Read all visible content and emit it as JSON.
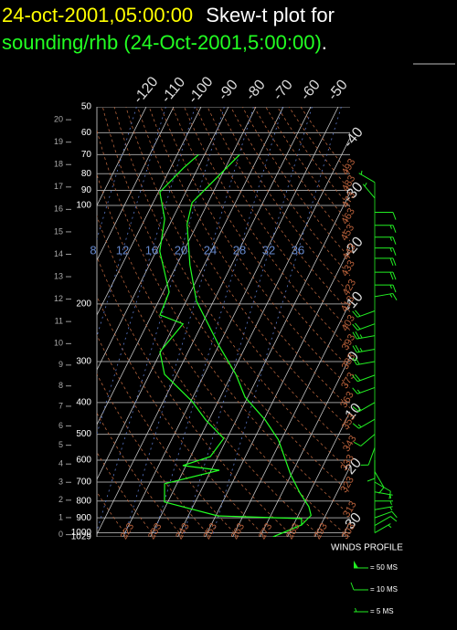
{
  "chart_data": {
    "type": "skewt",
    "title_date": "24-oct-2001,05:00:00",
    "title": "Skew-t plot for",
    "subtitle": "sounding/rhb (24-Oct-2001,5:00:00)",
    "subtitle_end": ".",
    "log_y": true,
    "ylim": [
      50,
      1029
    ],
    "yticks": [
      50,
      60,
      70,
      80,
      90,
      100,
      200,
      300,
      400,
      500,
      600,
      700,
      800,
      900,
      1000,
      1029
    ],
    "height_ticks": [
      0,
      1,
      2,
      3,
      4,
      5,
      6,
      7,
      8,
      9,
      10,
      11,
      12,
      13,
      14,
      15,
      16,
      17,
      18,
      19,
      20
    ],
    "isotherms": [
      -120,
      -110,
      -100,
      -90,
      -80,
      -70,
      -60,
      -50,
      -40,
      -30,
      -20,
      -10,
      0,
      10,
      20,
      30
    ],
    "dry_adiabats": [
      223,
      233,
      243,
      253,
      263,
      273,
      283,
      293,
      303,
      313,
      323,
      333,
      343,
      353,
      363,
      373,
      383,
      393,
      403,
      413,
      423,
      433,
      443,
      453,
      463,
      473,
      483,
      493
    ],
    "mixing_ratios": [
      8,
      12,
      16,
      20,
      24,
      28,
      32,
      36
    ],
    "grid": true,
    "series": [
      {
        "color": "#22ff22",
        "pressure": [
          70,
          98,
          114,
          152,
          196,
          270,
          328,
          385,
          452,
          520,
          664,
          755,
          832,
          885,
          946,
          1029
        ],
        "values": [
          -77.2,
          -85.8,
          -83.7,
          -75.2,
          -66.2,
          -49.5,
          -38.5,
          -31,
          -19.5,
          -11,
          -0.2,
          6.5,
          12.3,
          14.7,
          13,
          4.7
        ]
      },
      {
        "color": "#22ff22",
        "pressure": [
          70,
          77,
          91,
          110,
          138,
          184,
          216,
          230,
          280,
          328,
          397,
          452,
          515,
          585,
          623,
          644,
          708,
          805,
          888,
          905,
          946,
          1029
        ],
        "values": [
          -92.2,
          -95.3,
          -99.5,
          -92.8,
          -88.7,
          -77.8,
          -77,
          -67,
          -70.3,
          -64.5,
          -49.5,
          -41.2,
          -31.2,
          -32.8,
          -41.2,
          -27,
          -44.5,
          -41.2,
          -19.3,
          11.8,
          13,
          4.7
        ]
      }
    ],
    "winds": {
      "title": "WINDS PROFILE",
      "color": "#22ee22",
      "pressure": [
        85,
        95,
        105,
        115,
        125,
        135,
        145,
        160,
        175,
        190,
        210,
        230,
        250,
        275,
        300,
        330,
        360,
        400,
        450,
        500,
        550,
        600,
        650,
        700,
        750,
        800,
        850,
        900,
        950,
        1000
      ],
      "speed": [
        5,
        5,
        10,
        15,
        15,
        15,
        20,
        20,
        15,
        15,
        20,
        20,
        25,
        25,
        20,
        20,
        15,
        15,
        15,
        10,
        10,
        10,
        10,
        10,
        5,
        5,
        5,
        10,
        10,
        5
      ],
      "direction": [
        300,
        320,
        90,
        90,
        90,
        90,
        90,
        90,
        90,
        80,
        250,
        250,
        260,
        260,
        260,
        250,
        250,
        240,
        240,
        230,
        200,
        180,
        150,
        120,
        100,
        90,
        80,
        70,
        60,
        60
      ],
      "legend": [
        {
          "value": 50,
          "label": "= 50 MS"
        },
        {
          "value": 10,
          "label": "= 10 MS"
        },
        {
          "value": 5,
          "label": "= 5 MS"
        }
      ]
    }
  }
}
